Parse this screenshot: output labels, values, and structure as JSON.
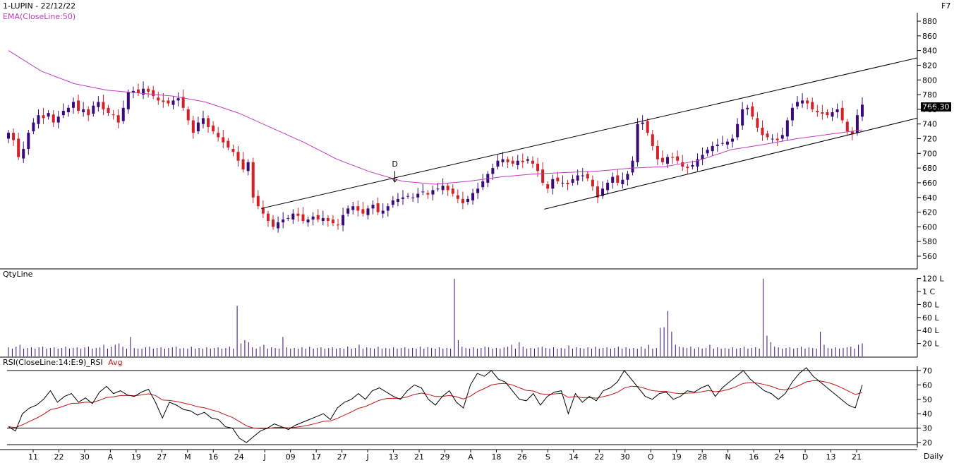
{
  "header": {
    "title": "1-LUPIN - 22/12/22",
    "hotkey": "F7",
    "ema_label": "EMA(CloseLine:50)"
  },
  "panels": {
    "price": {
      "last_price": "766.30"
    },
    "volume": {
      "label": "QtyLine"
    },
    "rsi": {
      "label": "RSI(CloseLine:14:E:9)_RSI",
      "avg_label": "Avg"
    }
  },
  "footer": {
    "period": "Daily"
  },
  "colors": {
    "up": "#3b0a7a",
    "down": "#d42027",
    "ema": "#c23ac2",
    "rsi": "#000000",
    "rsi_avg": "#c01616",
    "frame": "#000000"
  },
  "chart_data": [
    {
      "type": "candlestick",
      "title": "1-LUPIN - 22/12/22",
      "ylim": [
        550,
        890
      ],
      "yticks": [
        560,
        580,
        600,
        620,
        640,
        660,
        680,
        700,
        720,
        740,
        760,
        780,
        800,
        820,
        840,
        860,
        880
      ],
      "x_tick_labels": [
        "11",
        "22",
        "30",
        "A",
        "19",
        "27",
        "M",
        "16",
        "24",
        "J",
        "09",
        "17",
        "27",
        "J",
        "13",
        "21",
        "29",
        "A",
        "18",
        "26",
        "S",
        "14",
        "22",
        "30",
        "O",
        "19",
        "28",
        "N",
        "16",
        "24",
        "D",
        "13",
        "21"
      ],
      "close_series_approx": [
        728,
        718,
        695,
        706,
        728,
        742,
        752,
        748,
        755,
        742,
        750,
        758,
        762,
        770,
        758,
        760,
        752,
        765,
        770,
        760,
        755,
        752,
        742,
        762,
        783,
        785,
        782,
        788,
        784,
        778,
        772,
        770,
        768,
        772,
        775,
        762,
        745,
        728,
        742,
        748,
        736,
        730,
        722,
        715,
        708,
        702,
        690,
        678,
        688,
        640,
        628,
        618,
        608,
        600,
        606,
        610,
        612,
        618,
        615,
        608,
        610,
        614,
        610,
        612,
        608,
        605,
        602,
        616,
        625,
        628,
        622,
        618,
        625,
        630,
        620,
        622,
        628,
        636,
        638,
        640,
        642,
        640,
        645,
        648,
        644,
        650,
        652,
        656,
        650,
        645,
        638,
        632,
        638,
        646,
        652,
        662,
        672,
        680,
        690,
        692,
        688,
        686,
        690,
        688,
        692,
        686,
        676,
        660,
        652,
        665,
        662,
        660,
        658,
        665,
        670,
        670,
        666,
        655,
        640,
        652,
        660,
        668,
        660,
        664,
        672,
        690,
        740,
        742,
        728,
        710,
        692,
        688,
        695,
        694,
        690,
        682,
        680,
        684,
        692,
        698,
        705,
        710,
        712,
        714,
        716,
        720,
        740,
        760,
        762,
        750,
        735,
        725,
        722,
        720,
        718,
        725,
        745,
        762,
        770,
        772,
        768,
        760,
        756,
        754,
        752,
        756,
        760,
        745,
        730,
        726,
        752,
        766.3
      ],
      "ema_series_approx": [
        840,
        812,
        795,
        786,
        782,
        778,
        770,
        755,
        735,
        715,
        692,
        675,
        662,
        658,
        662,
        668,
        672,
        674,
        676,
        680,
        682,
        690,
        705,
        712,
        720,
        726,
        732
      ],
      "trendlines": [
        {
          "name": "upper-channel",
          "from": [
            "J",
            625
          ],
          "to": [
            "end",
            830
          ]
        },
        {
          "name": "lower-channel",
          "from": [
            "S",
            624
          ],
          "to": [
            "end",
            748
          ]
        }
      ],
      "annotations": [
        "D"
      ]
    },
    {
      "type": "bar",
      "title": "QtyLine",
      "yticks": [
        "20 L",
        "40 L",
        "60 L",
        "80 L",
        "1 C",
        "120 L"
      ],
      "values_approx_lakh": [
        14,
        12,
        15,
        18,
        12,
        13,
        14,
        12,
        14,
        15,
        12,
        13,
        14,
        12,
        13,
        15,
        12,
        13,
        14,
        12,
        14,
        15,
        12,
        13,
        14,
        18,
        12,
        15,
        18,
        20,
        15,
        12,
        30,
        13,
        12,
        12,
        14,
        15,
        12,
        13,
        14,
        12,
        13,
        14,
        15,
        12,
        13,
        12,
        15,
        12,
        13,
        12,
        14,
        12,
        13,
        14,
        12,
        13,
        15,
        12,
        78,
        20,
        25,
        22,
        14,
        12,
        15,
        18,
        12,
        14,
        13,
        12,
        30,
        14,
        12,
        13,
        12,
        14,
        12,
        15,
        12,
        13,
        14,
        12,
        13,
        14,
        12,
        13,
        12,
        15,
        12,
        13,
        18,
        12,
        14,
        13,
        12,
        15,
        12,
        13,
        12,
        14,
        12,
        13,
        14,
        12,
        13,
        12,
        15,
        12,
        14,
        13,
        12,
        14,
        12,
        13,
        12,
        134,
        25,
        15,
        13,
        12,
        14,
        12,
        13,
        15,
        14,
        12,
        13,
        12,
        14,
        15,
        18,
        12,
        22,
        15,
        12,
        13,
        12,
        14,
        15,
        13,
        12,
        14,
        12,
        13,
        12,
        17,
        12,
        14,
        13,
        12,
        14,
        12,
        15,
        12,
        13,
        14,
        12,
        13,
        15,
        12,
        14,
        12,
        13,
        12,
        15,
        12,
        18,
        12,
        13,
        44,
        45,
        70,
        38,
        18,
        15,
        14,
        13,
        15,
        12,
        14,
        12,
        13,
        18,
        12,
        14,
        12,
        13,
        12,
        14,
        12,
        13,
        15,
        12,
        13,
        14,
        12,
        120,
        32,
        22,
        15,
        14,
        12,
        13,
        14,
        12,
        13,
        15,
        12,
        14,
        13,
        12,
        38,
        18,
        13,
        12,
        14,
        12,
        13,
        14,
        15,
        12,
        18,
        20
      ]
    },
    {
      "type": "line",
      "title": "RSI(CloseLine:14:E:9)_RSI",
      "series": [
        {
          "name": "RSI"
        },
        {
          "name": "Avg"
        }
      ],
      "ylim": [
        18,
        73
      ],
      "yticks": [
        20,
        30,
        40,
        50,
        60,
        70
      ],
      "reference_lines": [
        70,
        30
      ],
      "rsi_approx": [
        31,
        28,
        40,
        44,
        46,
        50,
        56,
        48,
        52,
        54,
        48,
        51,
        47,
        55,
        59,
        54,
        56,
        53,
        52,
        55,
        57,
        48,
        37,
        48,
        46,
        43,
        42,
        39,
        41,
        37,
        36,
        31,
        30,
        23,
        20,
        24,
        28,
        30,
        33,
        31,
        29,
        32,
        34,
        36,
        38,
        40,
        36,
        44,
        48,
        50,
        54,
        50,
        56,
        58,
        55,
        52,
        50,
        56,
        60,
        58,
        50,
        46,
        52,
        56,
        48,
        44,
        60,
        68,
        66,
        70,
        64,
        62,
        56,
        50,
        49,
        54,
        46,
        52,
        55,
        56,
        40,
        54,
        48,
        52,
        49,
        56,
        58,
        62,
        70,
        64,
        58,
        52,
        50,
        54,
        55,
        50,
        52,
        56,
        55,
        58,
        60,
        52,
        58,
        62,
        66,
        70,
        64,
        60,
        56,
        54,
        50,
        54,
        62,
        68,
        72,
        66,
        62,
        58,
        54,
        50,
        46,
        44,
        60
      ]
    }
  ]
}
